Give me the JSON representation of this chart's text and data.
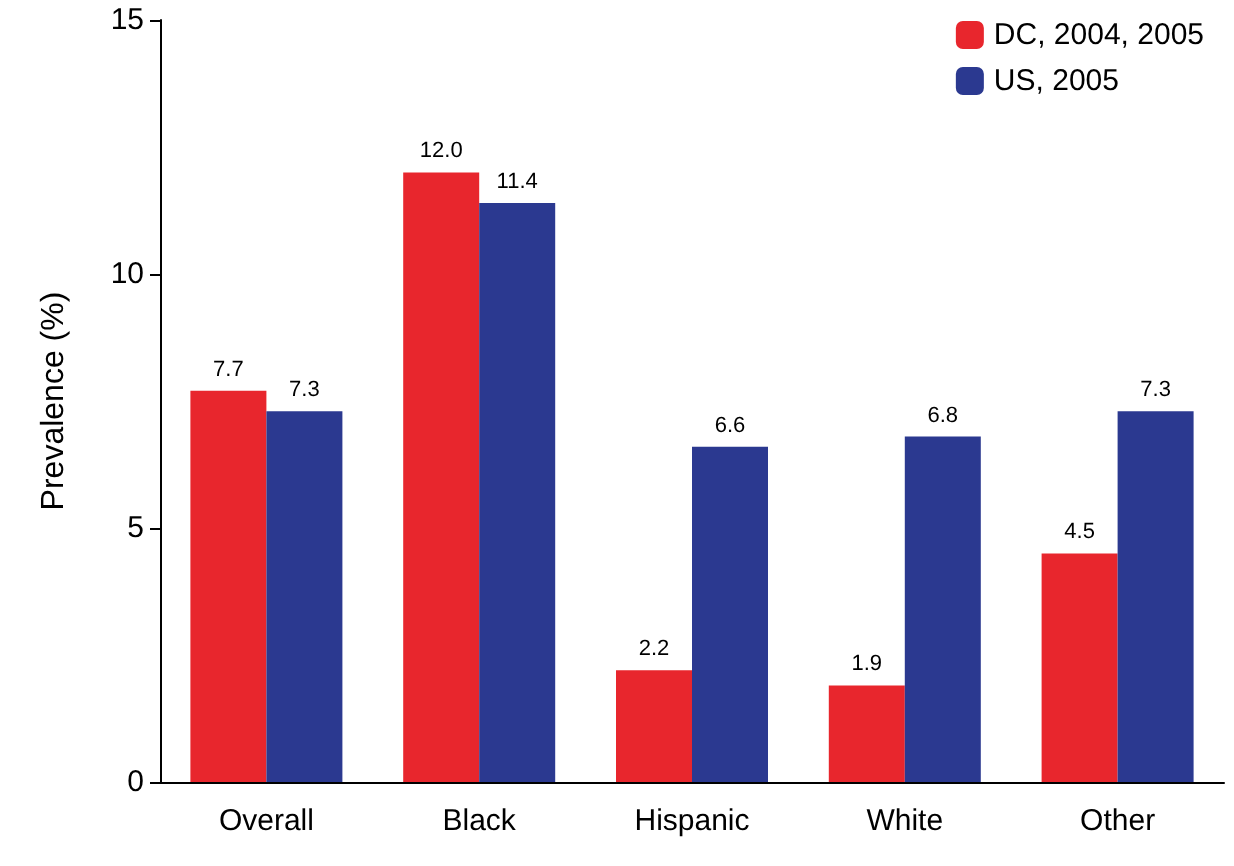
{
  "chart_data": {
    "type": "bar",
    "ylabel": "Prevalence (%)",
    "categories": [
      "Overall",
      "Black",
      "Hispanic",
      "White",
      "Other"
    ],
    "series": [
      {
        "name": "DC, 2004, 2005",
        "color": "#e8262d",
        "values": [
          7.7,
          12.0,
          2.2,
          1.9,
          4.5
        ],
        "value_labels": [
          "7.7",
          "12.0",
          "2.2",
          "1.9",
          "4.5"
        ]
      },
      {
        "name": "US, 2005",
        "color": "#2b3990",
        "values": [
          7.3,
          11.4,
          6.6,
          6.8,
          7.3
        ],
        "value_labels": [
          "7.3",
          "11.4",
          "6.6",
          "6.8",
          "7.3"
        ]
      }
    ],
    "ylim": [
      0,
      15
    ],
    "yticks": [
      0,
      5,
      10,
      15
    ],
    "grid": false,
    "legend": "top right"
  }
}
